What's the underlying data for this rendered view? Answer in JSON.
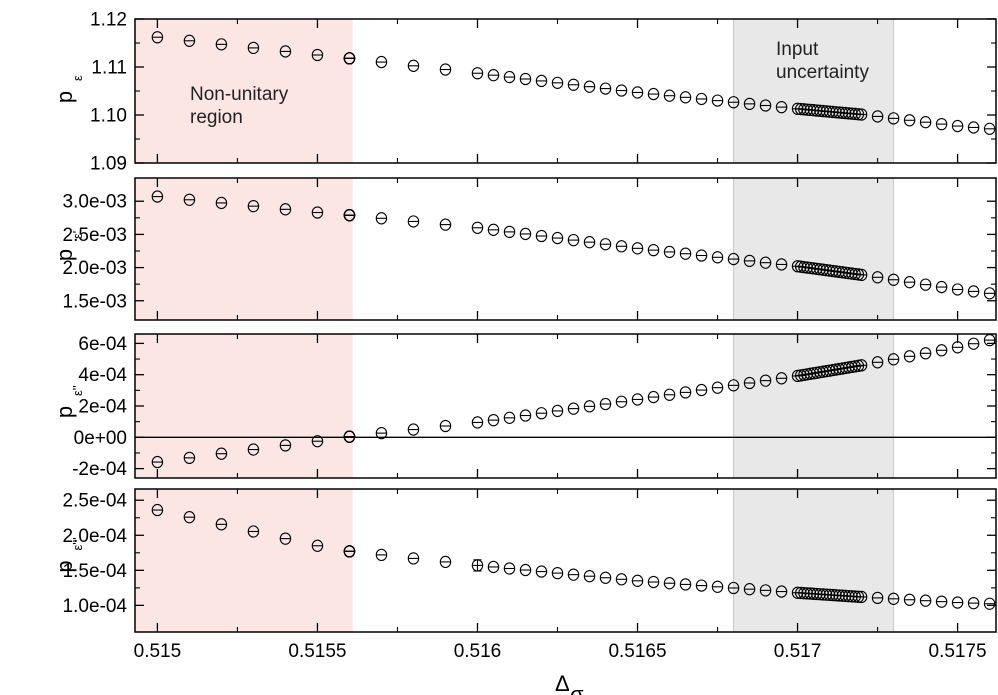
{
  "chart_data": {
    "type": "scatter",
    "x_axis": {
      "label": "Δ",
      "label_sub": "σ",
      "range": [
        0.51493,
        0.51762
      ],
      "ticks": [
        0.515,
        0.5155,
        0.516,
        0.5165,
        0.517,
        0.5175
      ],
      "tick_labels": [
        "0.515",
        "0.5155",
        "0.516",
        "0.5165",
        "0.517",
        "0.5175"
      ]
    },
    "regions": [
      {
        "name": "non-unitary",
        "x": [
          0.51493,
          0.51561
        ],
        "color": "#fce6e4",
        "label_lines": [
          "Non-unitary",
          "region"
        ]
      },
      {
        "name": "input-uncertainty",
        "x": [
          0.5168,
          0.5173
        ],
        "color": "#e8e8e8",
        "label_lines": [
          "Input",
          "uncertainty"
        ]
      }
    ],
    "panels": [
      {
        "id": "p_eps",
        "ylabel": "p",
        "ylabel_sub": "ε",
        "ylim": [
          1.09,
          1.12
        ],
        "ticks": [
          1.09,
          1.1,
          1.11,
          1.12
        ],
        "tick_labels": [
          "1.09",
          "1.10",
          "1.11",
          "1.12"
        ],
        "zero_line": false,
        "anchors": [
          [
            0.515,
            1.1162
          ],
          [
            0.5155,
            1.1125
          ],
          [
            0.5156,
            1.1118
          ],
          [
            0.516,
            1.1087
          ],
          [
            0.5165,
            1.1047
          ],
          [
            0.517,
            1.1013
          ],
          [
            0.5172,
            1.1001
          ],
          [
            0.5175,
            1.0977
          ],
          [
            0.51762,
            1.097
          ]
        ]
      },
      {
        "id": "p_eps_prime",
        "ylabel": "p",
        "ylabel_sub": "ε'",
        "ylim": [
          0.00121,
          0.00335
        ],
        "ticks": [
          0.0015,
          0.002,
          0.0025,
          0.003
        ],
        "tick_labels": [
          "1.5e-03",
          "2.0e-03",
          "2.5e-03",
          "3.0e-03"
        ],
        "zero_line": false,
        "anchors": [
          [
            0.515,
            0.00307
          ],
          [
            0.5155,
            0.00283
          ],
          [
            0.5156,
            0.00279
          ],
          [
            0.516,
            0.0026
          ],
          [
            0.5165,
            0.00229
          ],
          [
            0.517,
            0.00202
          ],
          [
            0.5172,
            0.00189
          ],
          [
            0.5175,
            0.00167
          ],
          [
            0.51762,
            0.0016
          ]
        ]
      },
      {
        "id": "p_eps_dprime",
        "ylabel": "p",
        "ylabel_sub": "ε''",
        "ylim": [
          -0.00026,
          0.00066
        ],
        "ticks": [
          -0.0002,
          0.0,
          0.0002,
          0.0004,
          0.0006
        ],
        "tick_labels": [
          "-2e-04",
          "0e+00",
          "2e-04",
          "4e-04",
          "6e-04"
        ],
        "zero_line": true,
        "anchors": [
          [
            0.515,
            -0.000158
          ],
          [
            0.5155,
            -2.5e-05
          ],
          [
            0.5156,
            4e-06
          ],
          [
            0.516,
            9.5e-05
          ],
          [
            0.5165,
            0.000242
          ],
          [
            0.517,
            0.000392
          ],
          [
            0.5172,
            0.00046
          ],
          [
            0.5175,
            0.000575
          ],
          [
            0.51762,
            0.00063
          ]
        ]
      },
      {
        "id": "p_eps_tprime",
        "ylabel": "p",
        "ylabel_sub": "ε'''",
        "ylim": [
          6.2e-05,
          0.000266
        ],
        "ticks": [
          0.0001,
          0.00015,
          0.0002,
          0.00025
        ],
        "tick_labels": [
          "1.0e-04",
          "1.5e-04",
          "2.0e-04",
          "2.5e-04"
        ],
        "zero_line": false,
        "anchors": [
          [
            0.515,
            0.000236
          ],
          [
            0.5155,
            0.000185
          ],
          [
            0.5156,
            0.000177
          ],
          [
            0.516,
            0.000157
          ],
          [
            0.5165,
            0.000135
          ],
          [
            0.517,
            0.000118
          ],
          [
            0.5172,
            0.000112
          ],
          [
            0.5175,
            0.000104
          ],
          [
            0.51762,
            0.000102
          ]
        ],
        "error_bar": {
          "x": 0.516,
          "y": 0.000157,
          "err": 8e-06
        }
      }
    ]
  }
}
